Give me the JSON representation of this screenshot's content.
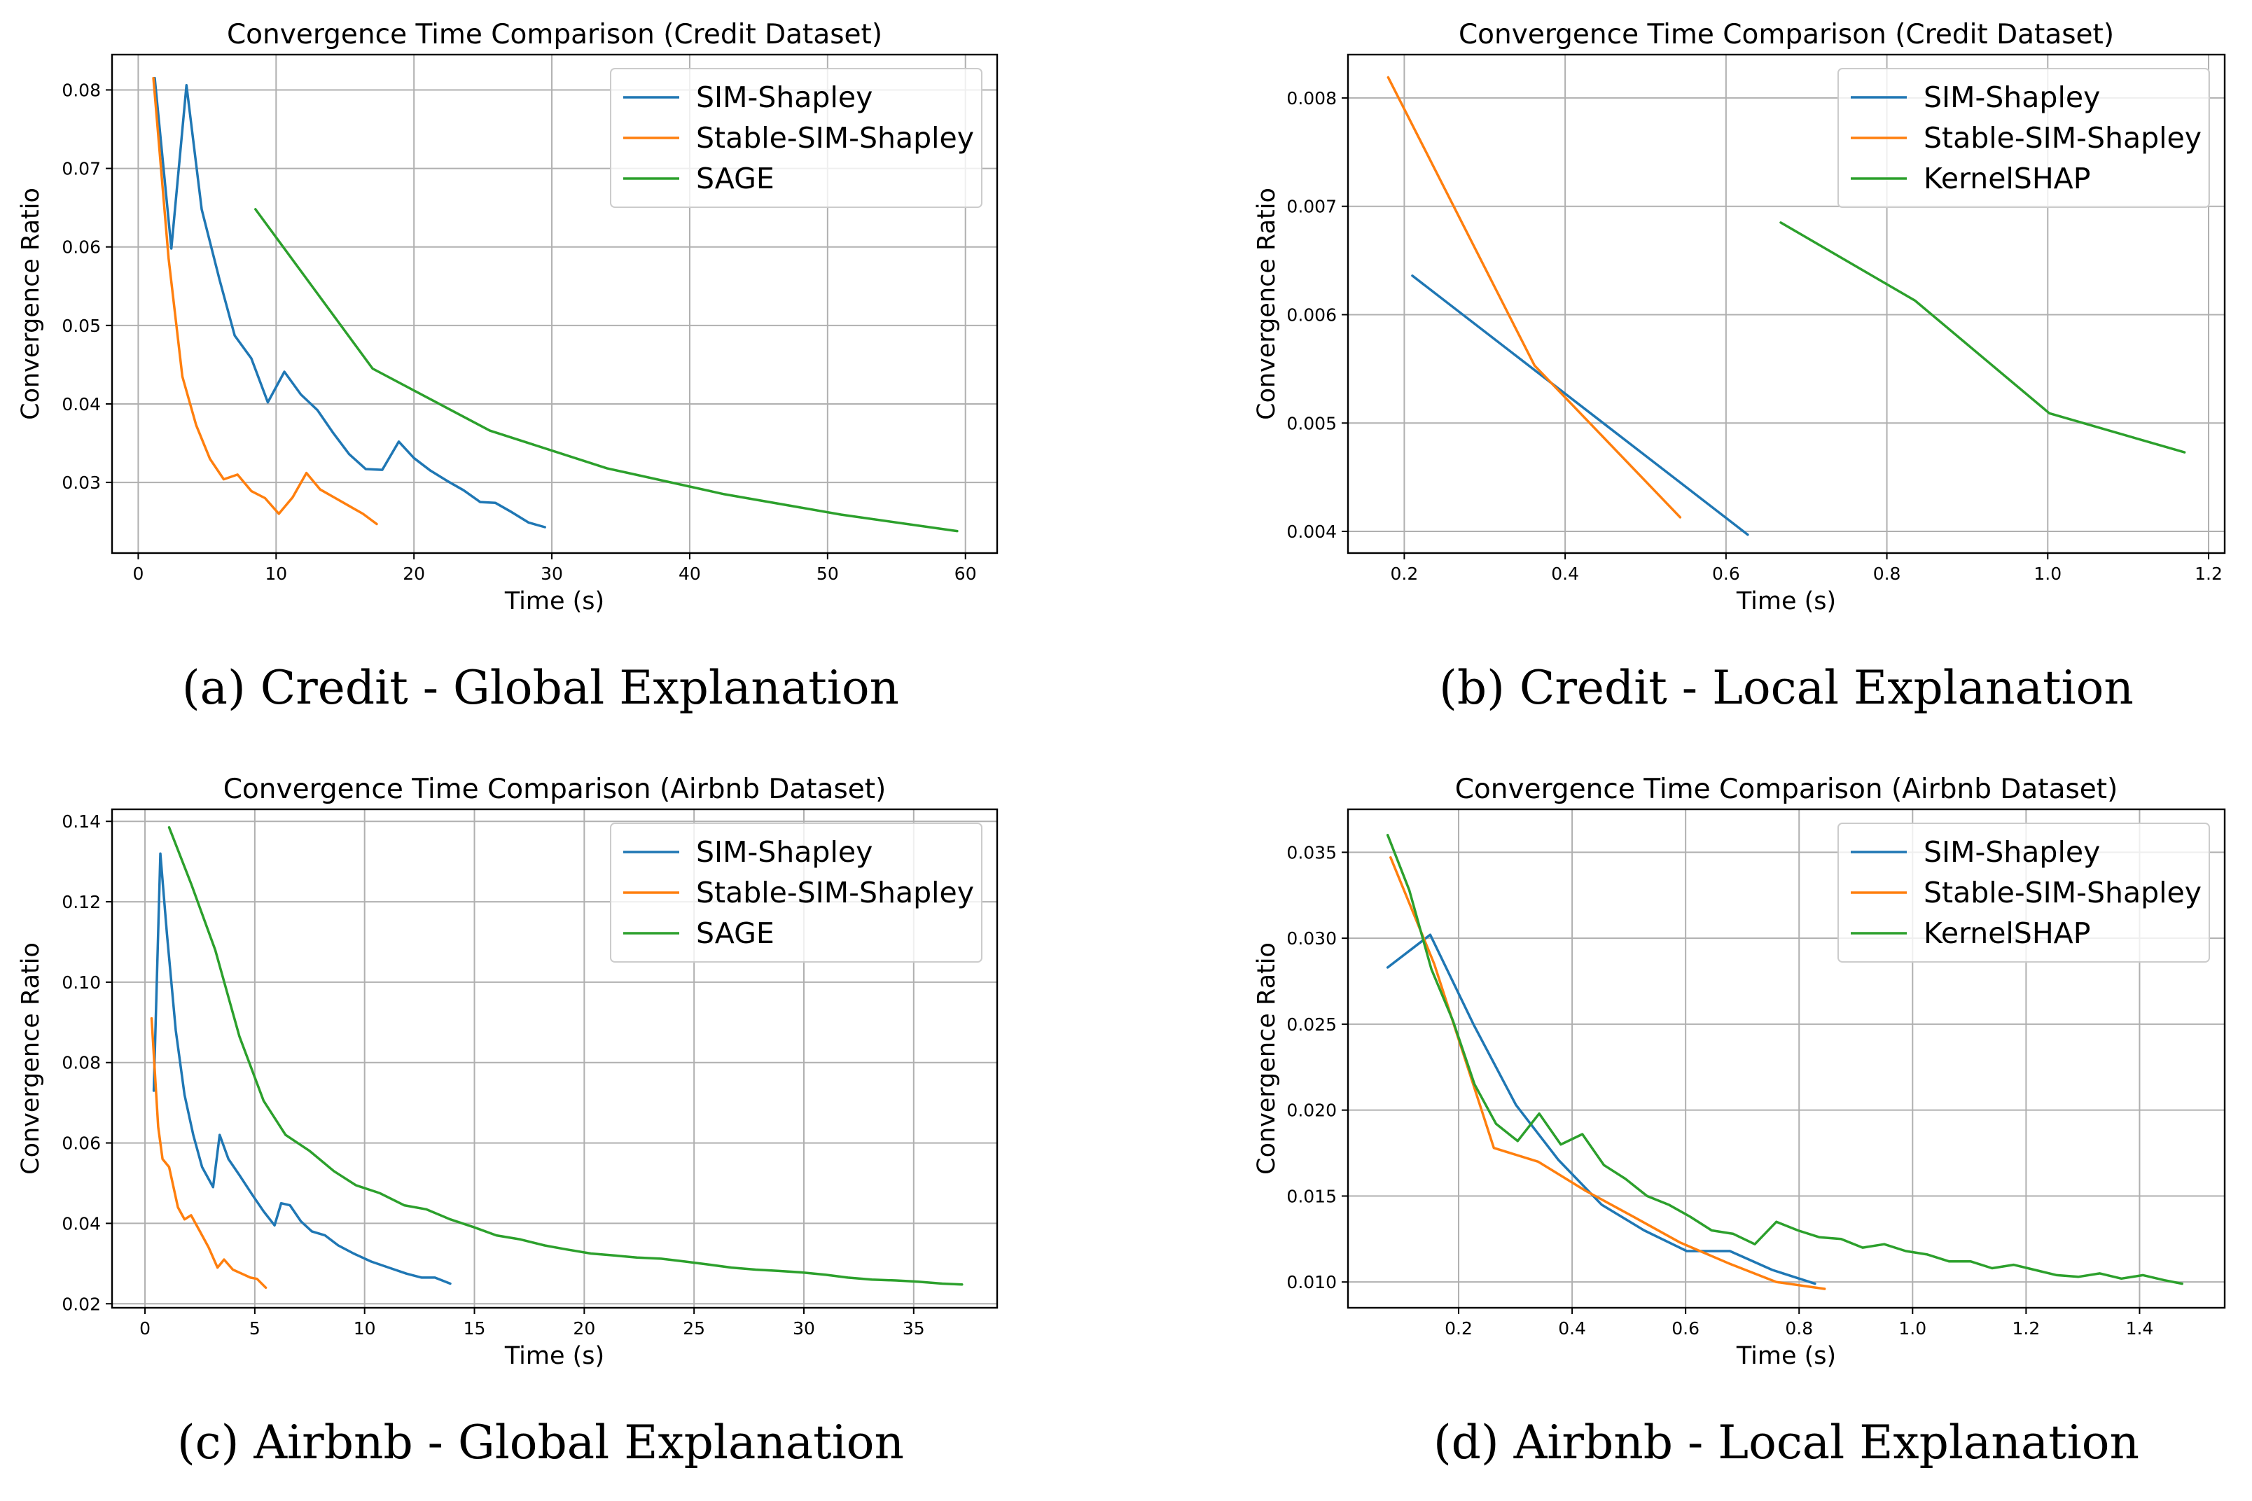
{
  "chart_data": [
    {
      "type": "line",
      "title": "Convergence Time Comparison (Credit Dataset)",
      "xlabel": "Time (s)",
      "ylabel": "Convergence Ratio",
      "caption": "(a) Credit - Global Explanation",
      "xlim": [
        -1.9,
        62.3
      ],
      "ylim": [
        0.021,
        0.0845
      ],
      "xticks": [
        0,
        10,
        20,
        30,
        40,
        50,
        60
      ],
      "xtick_labels": [
        "0",
        "10",
        "20",
        "30",
        "40",
        "50",
        "60"
      ],
      "yticks": [
        0.03,
        0.04,
        0.05,
        0.06,
        0.07,
        0.08
      ],
      "ytick_labels": [
        "0.03",
        "0.04",
        "0.05",
        "0.06",
        "0.07",
        "0.08"
      ],
      "grid": true,
      "legend_position": "top-right",
      "series": [
        {
          "name": "SIM-Shapley",
          "color": "#1f77b4",
          "x": [
            1.2,
            2.4,
            3.5,
            4.6,
            5.9,
            7.0,
            8.2,
            9.4,
            10.6,
            11.8,
            13.0,
            14.1,
            15.3,
            16.5,
            17.7,
            18.9,
            20.0,
            21.2,
            22.4,
            23.6,
            24.8,
            25.9,
            27.1,
            28.3,
            29.5
          ],
          "y": [
            0.0815,
            0.0598,
            0.0806,
            0.0648,
            0.0558,
            0.0487,
            0.0458,
            0.0402,
            0.0441,
            0.0412,
            0.0392,
            0.0364,
            0.0336,
            0.0317,
            0.0316,
            0.0352,
            0.0331,
            0.0315,
            0.0302,
            0.029,
            0.0275,
            0.0274,
            0.0262,
            0.0249,
            0.0243
          ]
        },
        {
          "name": "Stable-SIM-Shapley",
          "color": "#ff7f0e",
          "x": [
            1.1,
            2.2,
            3.2,
            4.2,
            5.2,
            6.2,
            7.2,
            8.2,
            9.2,
            10.2,
            11.2,
            12.2,
            13.2,
            14.3,
            15.3,
            16.3,
            17.3
          ],
          "y": [
            0.0815,
            0.0586,
            0.0435,
            0.0373,
            0.033,
            0.0304,
            0.031,
            0.0289,
            0.028,
            0.026,
            0.0281,
            0.0312,
            0.0291,
            0.028,
            0.027,
            0.026,
            0.0247
          ]
        },
        {
          "name": "SAGE",
          "color": "#2ca02c",
          "x": [
            8.5,
            17.0,
            25.5,
            34.0,
            42.5,
            51.0,
            59.4
          ],
          "y": [
            0.0648,
            0.0445,
            0.0366,
            0.0318,
            0.0285,
            0.0259,
            0.0238
          ]
        }
      ]
    },
    {
      "type": "line",
      "title": "Convergence Time Comparison (Credit Dataset)",
      "xlabel": "Time (s)",
      "ylabel": "Convergence Ratio",
      "caption": "(b) Credit - Local Explanation",
      "xlim": [
        0.13,
        1.22
      ],
      "ylim": [
        0.0038,
        0.0084
      ],
      "xticks": [
        0.2,
        0.4,
        0.6,
        0.8,
        1.0,
        1.2
      ],
      "xtick_labels": [
        "0.2",
        "0.4",
        "0.6",
        "0.8",
        "1.0",
        "1.2"
      ],
      "yticks": [
        0.004,
        0.005,
        0.006,
        0.007,
        0.008
      ],
      "ytick_labels": [
        "0.004",
        "0.005",
        "0.006",
        "0.007",
        "0.008"
      ],
      "grid": true,
      "legend_position": "top-right",
      "series": [
        {
          "name": "SIM-Shapley",
          "color": "#1f77b4",
          "x": [
            0.21,
            0.627
          ],
          "y": [
            0.00636,
            0.00397
          ]
        },
        {
          "name": "Stable-SIM-Shapley",
          "color": "#ff7f0e",
          "x": [
            0.18,
            0.362,
            0.543
          ],
          "y": [
            0.00819,
            0.00553,
            0.00413
          ]
        },
        {
          "name": "KernelSHAP",
          "color": "#2ca02c",
          "x": [
            0.668,
            0.835,
            1.002,
            1.17
          ],
          "y": [
            0.00685,
            0.00613,
            0.00509,
            0.00473
          ]
        }
      ]
    },
    {
      "type": "line",
      "title": "Convergence Time Comparison (Airbnb Dataset)",
      "xlabel": "Time (s)",
      "ylabel": "Convergence Ratio",
      "caption": "(c) Airbnb - Global Explanation",
      "xlim": [
        -1.5,
        38.8
      ],
      "ylim": [
        0.019,
        0.143
      ],
      "xticks": [
        0,
        5,
        10,
        15,
        20,
        25,
        30,
        35
      ],
      "xtick_labels": [
        "0",
        "5",
        "10",
        "15",
        "20",
        "25",
        "30",
        "35"
      ],
      "yticks": [
        0.02,
        0.04,
        0.06,
        0.08,
        0.1,
        0.12,
        0.14
      ],
      "ytick_labels": [
        "0.02",
        "0.04",
        "0.06",
        "0.08",
        "0.10",
        "0.12",
        "0.14"
      ],
      "grid": true,
      "legend_position": "top-right",
      "series": [
        {
          "name": "SIM-Shapley",
          "color": "#1f77b4",
          "x": [
            0.4,
            0.7,
            1.0,
            1.4,
            1.8,
            2.2,
            2.6,
            3.1,
            3.4,
            3.8,
            4.3,
            4.9,
            5.4,
            5.9,
            6.2,
            6.6,
            7.1,
            7.6,
            8.2,
            8.8,
            9.5,
            10.3,
            11.1,
            11.9,
            12.6,
            13.2,
            13.9
          ],
          "y": [
            0.073,
            0.132,
            0.112,
            0.088,
            0.072,
            0.062,
            0.054,
            0.049,
            0.062,
            0.056,
            0.052,
            0.047,
            0.043,
            0.0395,
            0.045,
            0.0445,
            0.0405,
            0.038,
            0.037,
            0.0345,
            0.0325,
            0.0305,
            0.029,
            0.0275,
            0.0265,
            0.0265,
            0.025
          ]
        },
        {
          "name": "Stable-SIM-Shapley",
          "color": "#ff7f0e",
          "x": [
            0.3,
            0.6,
            0.8,
            1.1,
            1.5,
            1.8,
            2.1,
            2.5,
            2.9,
            3.3,
            3.6,
            4.0,
            4.4,
            4.8,
            5.1,
            5.5
          ],
          "y": [
            0.091,
            0.064,
            0.056,
            0.054,
            0.044,
            0.041,
            0.042,
            0.038,
            0.034,
            0.029,
            0.031,
            0.0285,
            0.0275,
            0.0265,
            0.0262,
            0.024
          ]
        },
        {
          "name": "SAGE",
          "color": "#2ca02c",
          "x": [
            1.1,
            2.1,
            3.2,
            4.3,
            5.4,
            6.4,
            7.5,
            8.6,
            9.6,
            10.7,
            11.8,
            12.8,
            13.9,
            15.0,
            16.0,
            17.1,
            18.2,
            19.2,
            20.3,
            21.4,
            22.4,
            23.5,
            24.6,
            25.6,
            26.7,
            27.8,
            28.8,
            29.9,
            31.0,
            32.0,
            33.1,
            34.2,
            35.2,
            36.3,
            37.2
          ],
          "y": [
            0.1385,
            0.1245,
            0.108,
            0.0865,
            0.0705,
            0.062,
            0.058,
            0.053,
            0.0495,
            0.0475,
            0.0445,
            0.0435,
            0.041,
            0.039,
            0.037,
            0.036,
            0.0345,
            0.0335,
            0.0325,
            0.032,
            0.0315,
            0.0312,
            0.0305,
            0.0298,
            0.029,
            0.0285,
            0.0282,
            0.0278,
            0.0272,
            0.0265,
            0.026,
            0.0258,
            0.0255,
            0.025,
            0.0248
          ]
        }
      ]
    },
    {
      "type": "line",
      "title": "Convergence Time Comparison (Airbnb Dataset)",
      "xlabel": "Time (s)",
      "ylabel": "Convergence Ratio",
      "caption": "(d) Airbnb - Local Explanation",
      "xlim": [
        0.005,
        1.55
      ],
      "ylim": [
        0.0085,
        0.0375
      ],
      "xticks": [
        0.2,
        0.4,
        0.6,
        0.8,
        1.0,
        1.2,
        1.4
      ],
      "xtick_labels": [
        "0.2",
        "0.4",
        "0.6",
        "0.8",
        "1.0",
        "1.2",
        "1.4"
      ],
      "yticks": [
        0.01,
        0.015,
        0.02,
        0.025,
        0.03,
        0.035
      ],
      "ytick_labels": [
        "0.010",
        "0.015",
        "0.020",
        "0.025",
        "0.030",
        "0.035"
      ],
      "grid": true,
      "legend_position": "top-right",
      "series": [
        {
          "name": "SIM-Shapley",
          "color": "#1f77b4",
          "x": [
            0.075,
            0.15,
            0.226,
            0.301,
            0.376,
            0.452,
            0.527,
            0.602,
            0.678,
            0.753,
            0.828
          ],
          "y": [
            0.0283,
            0.0302,
            0.025,
            0.0203,
            0.0171,
            0.0145,
            0.013,
            0.0118,
            0.0118,
            0.0107,
            0.0099
          ]
        },
        {
          "name": "Stable-SIM-Shapley",
          "color": "#ff7f0e",
          "x": [
            0.08,
            0.157,
            0.262,
            0.34,
            0.424,
            0.508,
            0.59,
            0.675,
            0.76,
            0.845
          ],
          "y": [
            0.0347,
            0.0285,
            0.0178,
            0.017,
            0.0153,
            0.0138,
            0.0123,
            0.0111,
            0.01,
            0.0096
          ]
        },
        {
          "name": "KernelSHAP",
          "color": "#2ca02c",
          "x": [
            0.075,
            0.113,
            0.152,
            0.19,
            0.228,
            0.266,
            0.304,
            0.342,
            0.38,
            0.418,
            0.456,
            0.494,
            0.532,
            0.57,
            0.608,
            0.646,
            0.684,
            0.722,
            0.76,
            0.798,
            0.836,
            0.874,
            0.912,
            0.95,
            0.988,
            1.026,
            1.064,
            1.102,
            1.14,
            1.178,
            1.216,
            1.254,
            1.292,
            1.33,
            1.368,
            1.406,
            1.444,
            1.475
          ],
          "y": [
            0.036,
            0.0328,
            0.0282,
            0.0252,
            0.0215,
            0.0192,
            0.0182,
            0.0198,
            0.018,
            0.0186,
            0.0168,
            0.016,
            0.015,
            0.0145,
            0.0138,
            0.013,
            0.0128,
            0.0122,
            0.0135,
            0.013,
            0.0126,
            0.0125,
            0.012,
            0.0122,
            0.0118,
            0.0116,
            0.0112,
            0.0112,
            0.0108,
            0.011,
            0.0107,
            0.0104,
            0.0103,
            0.0105,
            0.0102,
            0.0104,
            0.0101,
            0.0099
          ]
        }
      ]
    }
  ]
}
